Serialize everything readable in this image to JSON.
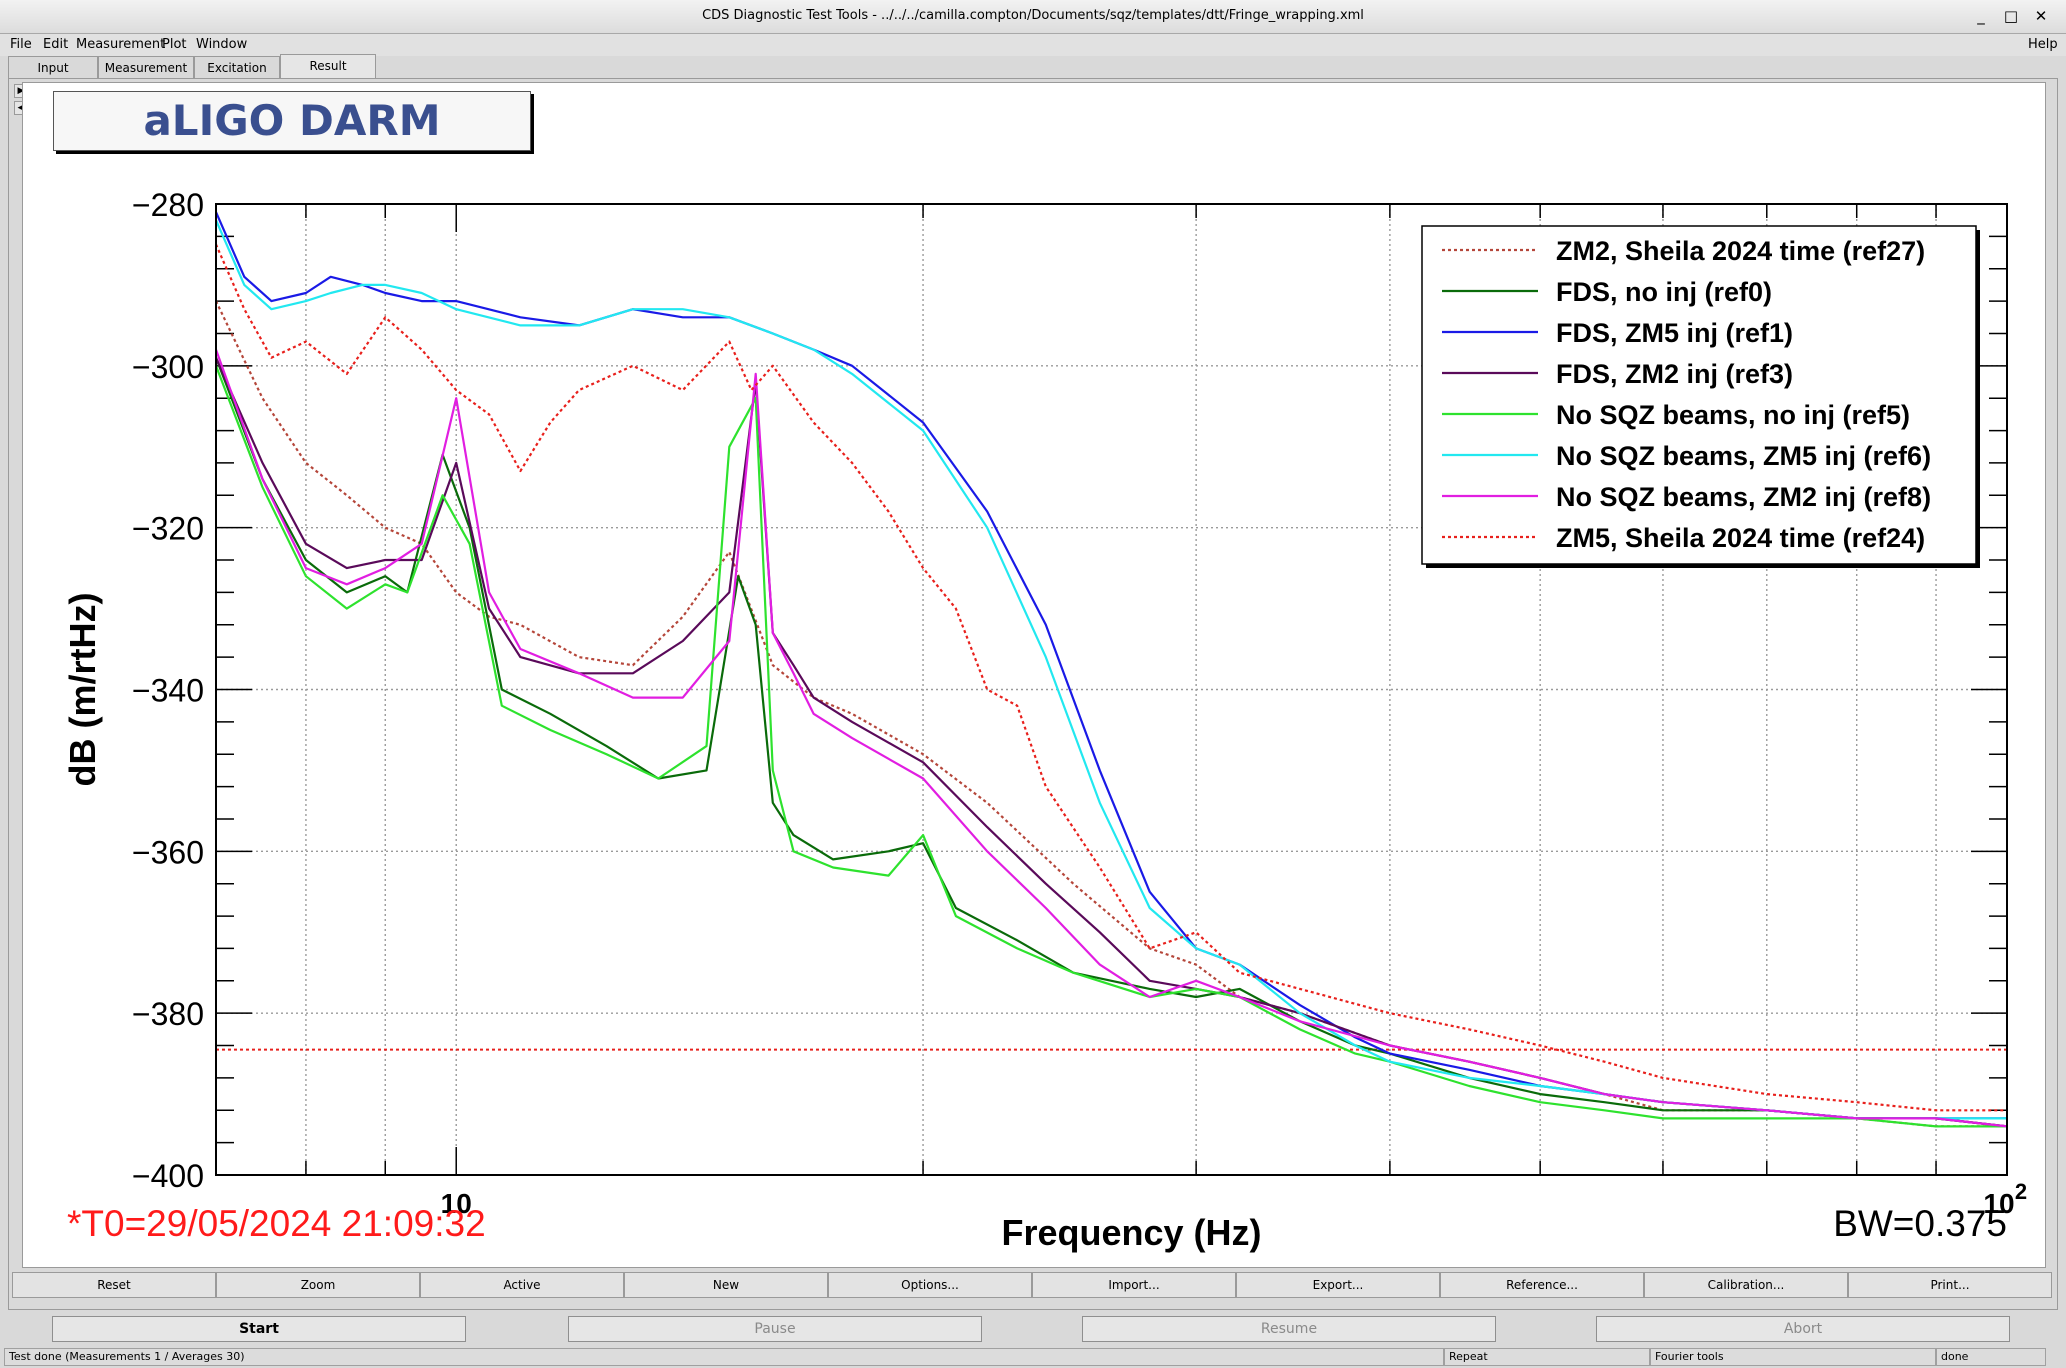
{
  "window": {
    "title": "CDS Diagnostic Test Tools - ../../../camilla.compton/Documents/sqz/templates/dtt/Fringe_wrapping.xml",
    "minimize": "_",
    "maximize": "□",
    "close": "✕"
  },
  "menu": {
    "file": "File",
    "edit": "Edit",
    "measurement": "Measurement",
    "plot": "Plot",
    "window": "Window",
    "help": "Help"
  },
  "tabs": [
    "Input",
    "Measurement",
    "Excitation",
    "Result"
  ],
  "plot_title": "aLIGO DARM",
  "t0": "*T0=29/05/2024 21:09:32",
  "bw": "BW=0.375",
  "toolbar": [
    "Reset",
    "Zoom",
    "Active",
    "New",
    "Options...",
    "Import...",
    "Export...",
    "Reference...",
    "Calibration...",
    "Print..."
  ],
  "controls": {
    "start": "Start",
    "pause": "Pause",
    "resume": "Resume",
    "abort": "Abort"
  },
  "status": {
    "message": "Test done (Measurements 1 / Averages 30)",
    "repeat": "Repeat",
    "tool": "Fourier tools",
    "state": "done"
  },
  "chart_data": {
    "type": "line",
    "xlabel": "Frequency (Hz)",
    "ylabel": "dB (m/rtHz)",
    "xscale": "log",
    "xlim": [
      7,
      100
    ],
    "ylim": [
      -400,
      -280
    ],
    "yticks": [
      -280,
      -300,
      -320,
      -340,
      -360,
      -380,
      -400
    ],
    "xtick_labels": [
      {
        "value": 10,
        "label": "10"
      },
      {
        "value": 100,
        "label": "10",
        "sup": "2"
      }
    ],
    "legend_position": "top-right",
    "grid": true,
    "hline": {
      "value": -384.5,
      "color": "#e8201c",
      "style": "dotted"
    },
    "series": [
      {
        "name": "ZM2, Sheila 2024 time (ref27)",
        "color": "#b5463a",
        "style": "dotted",
        "x": [
          7,
          7.5,
          8,
          8.5,
          9,
          9.5,
          10,
          10.5,
          11,
          12,
          13,
          14,
          15,
          16,
          17,
          18,
          20,
          22,
          25,
          28,
          30,
          32,
          35,
          40,
          45,
          50,
          55,
          60,
          70,
          80,
          90,
          100
        ],
        "y": [
          -292,
          -304,
          -312,
          -316,
          -320,
          -322,
          -328,
          -331,
          -332,
          -336,
          -337,
          -331,
          -323,
          -337,
          -341,
          -343,
          -348,
          -354,
          -364,
          -372,
          -374,
          -378,
          -380,
          -384,
          -386,
          -388,
          -390,
          -392,
          -392,
          -393,
          -394,
          -394
        ]
      },
      {
        "name": "FDS, no inj (ref0)",
        "color": "#0a6b0a",
        "style": "solid",
        "x": [
          7,
          7.5,
          8,
          8.5,
          9,
          9.3,
          9.8,
          10.2,
          10.7,
          11.5,
          12.5,
          13.5,
          14.5,
          15.2,
          15.6,
          16,
          16.5,
          17.5,
          19,
          20,
          21,
          23,
          25,
          28,
          30,
          32,
          35,
          38,
          40,
          45,
          50,
          55,
          60,
          70,
          80,
          90,
          100
        ],
        "y": [
          -299,
          -314,
          -324,
          -328,
          -326,
          -328,
          -311,
          -320,
          -340,
          -343,
          -347,
          -351,
          -350,
          -326,
          -332,
          -354,
          -358,
          -361,
          -360,
          -359,
          -367,
          -371,
          -375,
          -377,
          -378,
          -377,
          -381,
          -384,
          -385,
          -388,
          -390,
          -391,
          -392,
          -392,
          -393,
          -393,
          -394
        ]
      },
      {
        "name": "FDS, ZM5 inj (ref1)",
        "color": "#1a1ae6",
        "style": "solid",
        "x": [
          7,
          7.3,
          7.6,
          8,
          8.3,
          8.7,
          9,
          9.5,
          10,
          11,
          12,
          13,
          14,
          15,
          16,
          17,
          18,
          20,
          22,
          24,
          26,
          28,
          30,
          32,
          35,
          38,
          40,
          45,
          50,
          55,
          60,
          70,
          80,
          90,
          100
        ],
        "y": [
          -281,
          -289,
          -292,
          -291,
          -289,
          -290,
          -291,
          -292,
          -292,
          -294,
          -295,
          -293,
          -294,
          -294,
          -296,
          -298,
          -300,
          -307,
          -318,
          -332,
          -350,
          -365,
          -372,
          -374,
          -379,
          -383,
          -385,
          -387,
          -389,
          -390,
          -391,
          -392,
          -393,
          -393,
          -393
        ]
      },
      {
        "name": "FDS, ZM2 inj (ref3)",
        "color": "#5a0a5a",
        "style": "solid",
        "x": [
          7,
          7.5,
          8,
          8.5,
          9,
          9.5,
          10,
          10.5,
          11,
          12,
          13,
          14,
          15,
          15.6,
          16,
          16.5,
          17,
          18,
          20,
          22,
          24,
          26,
          28,
          30,
          32,
          35,
          40,
          45,
          50,
          55,
          60,
          70,
          80,
          90,
          100
        ],
        "y": [
          -299,
          -312,
          -322,
          -325,
          -324,
          -324,
          -312,
          -330,
          -336,
          -338,
          -338,
          -334,
          -328,
          -302,
          -333,
          -337,
          -341,
          -344,
          -349,
          -357,
          -364,
          -370,
          -376,
          -377,
          -378,
          -380,
          -384,
          -386,
          -388,
          -390,
          -391,
          -392,
          -393,
          -393,
          -394
        ]
      },
      {
        "name": "No SQZ beams, no inj (ref5)",
        "color": "#2ee22e",
        "style": "solid",
        "x": [
          7,
          7.5,
          8,
          8.5,
          9,
          9.3,
          9.8,
          10.2,
          10.7,
          11.5,
          12.5,
          13.5,
          14.5,
          15,
          15.6,
          16,
          16.5,
          17.5,
          19,
          20,
          21,
          23,
          25,
          28,
          30,
          32,
          35,
          38,
          40,
          45,
          50,
          55,
          60,
          70,
          80,
          90,
          100
        ],
        "y": [
          -300,
          -315,
          -326,
          -330,
          -327,
          -328,
          -316,
          -322,
          -342,
          -345,
          -348,
          -351,
          -347,
          -310,
          -304,
          -350,
          -360,
          -362,
          -363,
          -358,
          -368,
          -372,
          -375,
          -378,
          -377,
          -378,
          -382,
          -385,
          -386,
          -389,
          -391,
          -392,
          -393,
          -393,
          -393,
          -394,
          -394
        ]
      },
      {
        "name": "No SQZ beams, ZM5 inj (ref6)",
        "color": "#22e8f0",
        "style": "solid",
        "x": [
          7,
          7.3,
          7.6,
          8,
          8.3,
          8.7,
          9,
          9.5,
          10,
          11,
          12,
          13,
          14,
          15,
          16,
          17,
          18,
          20,
          22,
          24,
          26,
          28,
          30,
          32,
          35,
          38,
          40,
          45,
          50,
          55,
          60,
          70,
          80,
          90,
          100
        ],
        "y": [
          -282,
          -290,
          -293,
          -292,
          -291,
          -290,
          -290,
          -291,
          -293,
          -295,
          -295,
          -293,
          -293,
          -294,
          -296,
          -298,
          -301,
          -308,
          -320,
          -336,
          -354,
          -367,
          -372,
          -374,
          -380,
          -384,
          -386,
          -388,
          -389,
          -390,
          -391,
          -392,
          -393,
          -393,
          -393
        ]
      },
      {
        "name": "No SQZ beams, ZM2 inj (ref8)",
        "color": "#e11ee1",
        "style": "solid",
        "x": [
          7,
          7.5,
          8,
          8.5,
          9,
          9.5,
          10,
          10.5,
          11,
          12,
          13,
          14,
          15,
          15.6,
          16,
          16.5,
          17,
          18,
          20,
          22,
          24,
          26,
          28,
          30,
          32,
          35,
          40,
          45,
          50,
          55,
          60,
          70,
          80,
          90,
          100
        ],
        "y": [
          -298,
          -314,
          -325,
          -327,
          -325,
          -322,
          -304,
          -328,
          -335,
          -338,
          -341,
          -341,
          -334,
          -301,
          -333,
          -338,
          -343,
          -346,
          -351,
          -360,
          -367,
          -374,
          -378,
          -376,
          -378,
          -381,
          -384,
          -386,
          -388,
          -390,
          -391,
          -392,
          -393,
          -393,
          -394
        ]
      },
      {
        "name": "ZM5, Sheila 2024 time (ref24)",
        "color": "#e8201c",
        "style": "dotted",
        "x": [
          7,
          7.3,
          7.6,
          8,
          8.5,
          9,
          9.5,
          10,
          10.5,
          11,
          11.5,
          12,
          13,
          14,
          15,
          15.5,
          16,
          17,
          18,
          19,
          20,
          21,
          22,
          23,
          24,
          26,
          28,
          30,
          32,
          35,
          40,
          45,
          50,
          55,
          60,
          70,
          80,
          90,
          100
        ],
        "y": [
          -285,
          -293,
          -299,
          -297,
          -301,
          -294,
          -298,
          -303,
          -306,
          -313,
          -307,
          -303,
          -300,
          -303,
          -297,
          -303,
          -300,
          -307,
          -312,
          -318,
          -325,
          -330,
          -340,
          -342,
          -352,
          -362,
          -372,
          -370,
          -375,
          -377,
          -380,
          -382,
          -384,
          -386,
          -388,
          -390,
          -391,
          -392,
          -392
        ]
      }
    ]
  }
}
